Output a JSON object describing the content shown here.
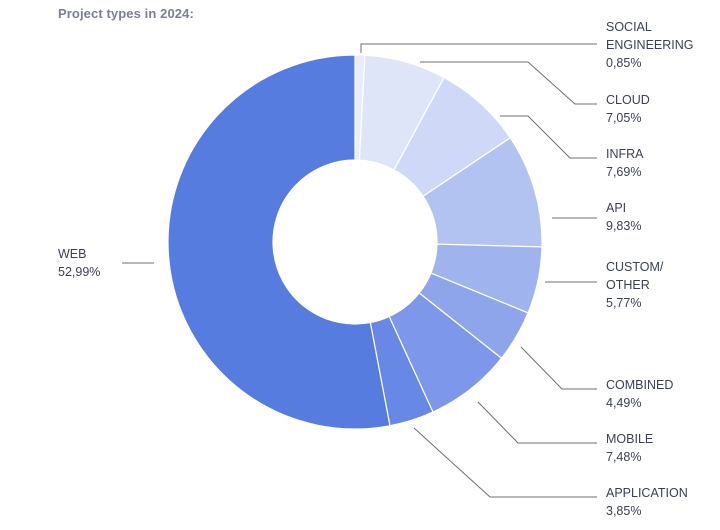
{
  "chart_data": {
    "type": "pie",
    "title": "Project types in 2024:",
    "hole": true,
    "slices": [
      {
        "label": [
          "SOCIAL",
          "ENGINEERING"
        ],
        "value_label": "0,85%",
        "value": 0.85,
        "color": "#e9edfb"
      },
      {
        "label": [
          "CLOUD"
        ],
        "value_label": "7,05%",
        "value": 7.05,
        "color": "#dfe5f9"
      },
      {
        "label": [
          "INFRA"
        ],
        "value_label": "7,69%",
        "value": 7.69,
        "color": "#cfd9f7"
      },
      {
        "label": [
          "API"
        ],
        "value_label": "9,83%",
        "value": 9.83,
        "color": "#b3c3f1"
      },
      {
        "label": [
          "CUSTOM/",
          "OTHER"
        ],
        "value_label": "5,77%",
        "value": 5.77,
        "color": "#9fb3ee"
      },
      {
        "label": [
          "COMBINED"
        ],
        "value_label": "4,49%",
        "value": 4.49,
        "color": "#8ea5ec"
      },
      {
        "label": [
          "MOBILE"
        ],
        "value_label": "7,48%",
        "value": 7.48,
        "color": "#7d97ea"
      },
      {
        "label": [
          "APPLICATION"
        ],
        "value_label": "3,85%",
        "value": 3.85,
        "color": "#6788e4"
      },
      {
        "label": [
          "WEB"
        ],
        "value_label": "52,99%",
        "value": 52.99,
        "color": "#567ce0"
      }
    ]
  }
}
